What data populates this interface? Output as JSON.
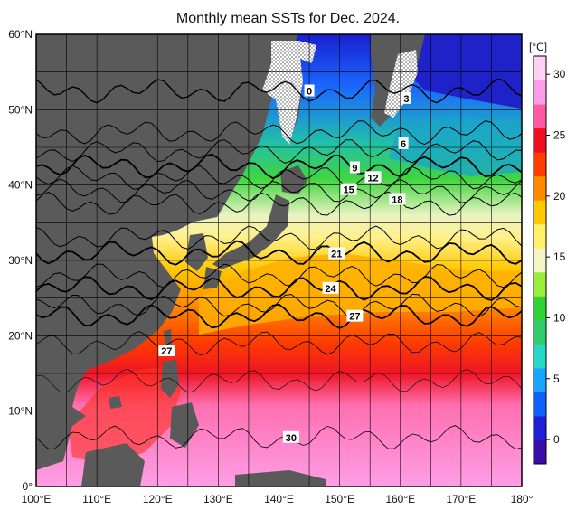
{
  "title": "Monthly mean SSTs for Dec. 2024.",
  "colorbar": {
    "unit": "[°C]",
    "ticks": [
      0,
      5,
      10,
      15,
      20,
      25,
      30
    ],
    "range": [
      -2,
      31.5
    ],
    "colors": [
      "#3b0ca8",
      "#1f1fd6",
      "#1060ff",
      "#18a4ff",
      "#27d8c8",
      "#2fce6a",
      "#31d334",
      "#9cec3a",
      "#f2f5c4",
      "#fff06a",
      "#ffc800",
      "#ff8a00",
      "#ff3d00",
      "#ee1020",
      "#ff5aa2",
      "#ff9ce8",
      "#ffd0f4"
    ]
  },
  "axes": {
    "lon_ticks": [
      "100°E",
      "110°E",
      "120°E",
      "130°E",
      "140°E",
      "150°E",
      "160°E",
      "170°E",
      "180°"
    ],
    "lat_ticks": [
      "0°",
      "10°N",
      "20°N",
      "30°N",
      "40°N",
      "50°N",
      "60°N"
    ]
  },
  "contour_labels": [
    {
      "text": "0",
      "lon": 145,
      "lat": 52.5
    },
    {
      "text": "3",
      "lon": 161,
      "lat": 51.5
    },
    {
      "text": "6",
      "lon": 160.5,
      "lat": 45.5
    },
    {
      "text": "9",
      "lon": 152.5,
      "lat": 42.3
    },
    {
      "text": "12",
      "lon": 155.5,
      "lat": 41.0
    },
    {
      "text": "15",
      "lon": 151.5,
      "lat": 39.4
    },
    {
      "text": "18",
      "lon": 159.5,
      "lat": 38.1
    },
    {
      "text": "21",
      "lon": 149.5,
      "lat": 30.9
    },
    {
      "text": "24",
      "lon": 148.5,
      "lat": 26.3
    },
    {
      "text": "27",
      "lon": 152.5,
      "lat": 22.6
    },
    {
      "text": "27",
      "lon": 121.5,
      "lat": 18.0
    },
    {
      "text": "30",
      "lon": 142,
      "lat": 6.5
    }
  ],
  "colors": {
    "land": "#5a5a5a",
    "sea_ice": "#ffffff",
    "frame": "#000000"
  }
}
